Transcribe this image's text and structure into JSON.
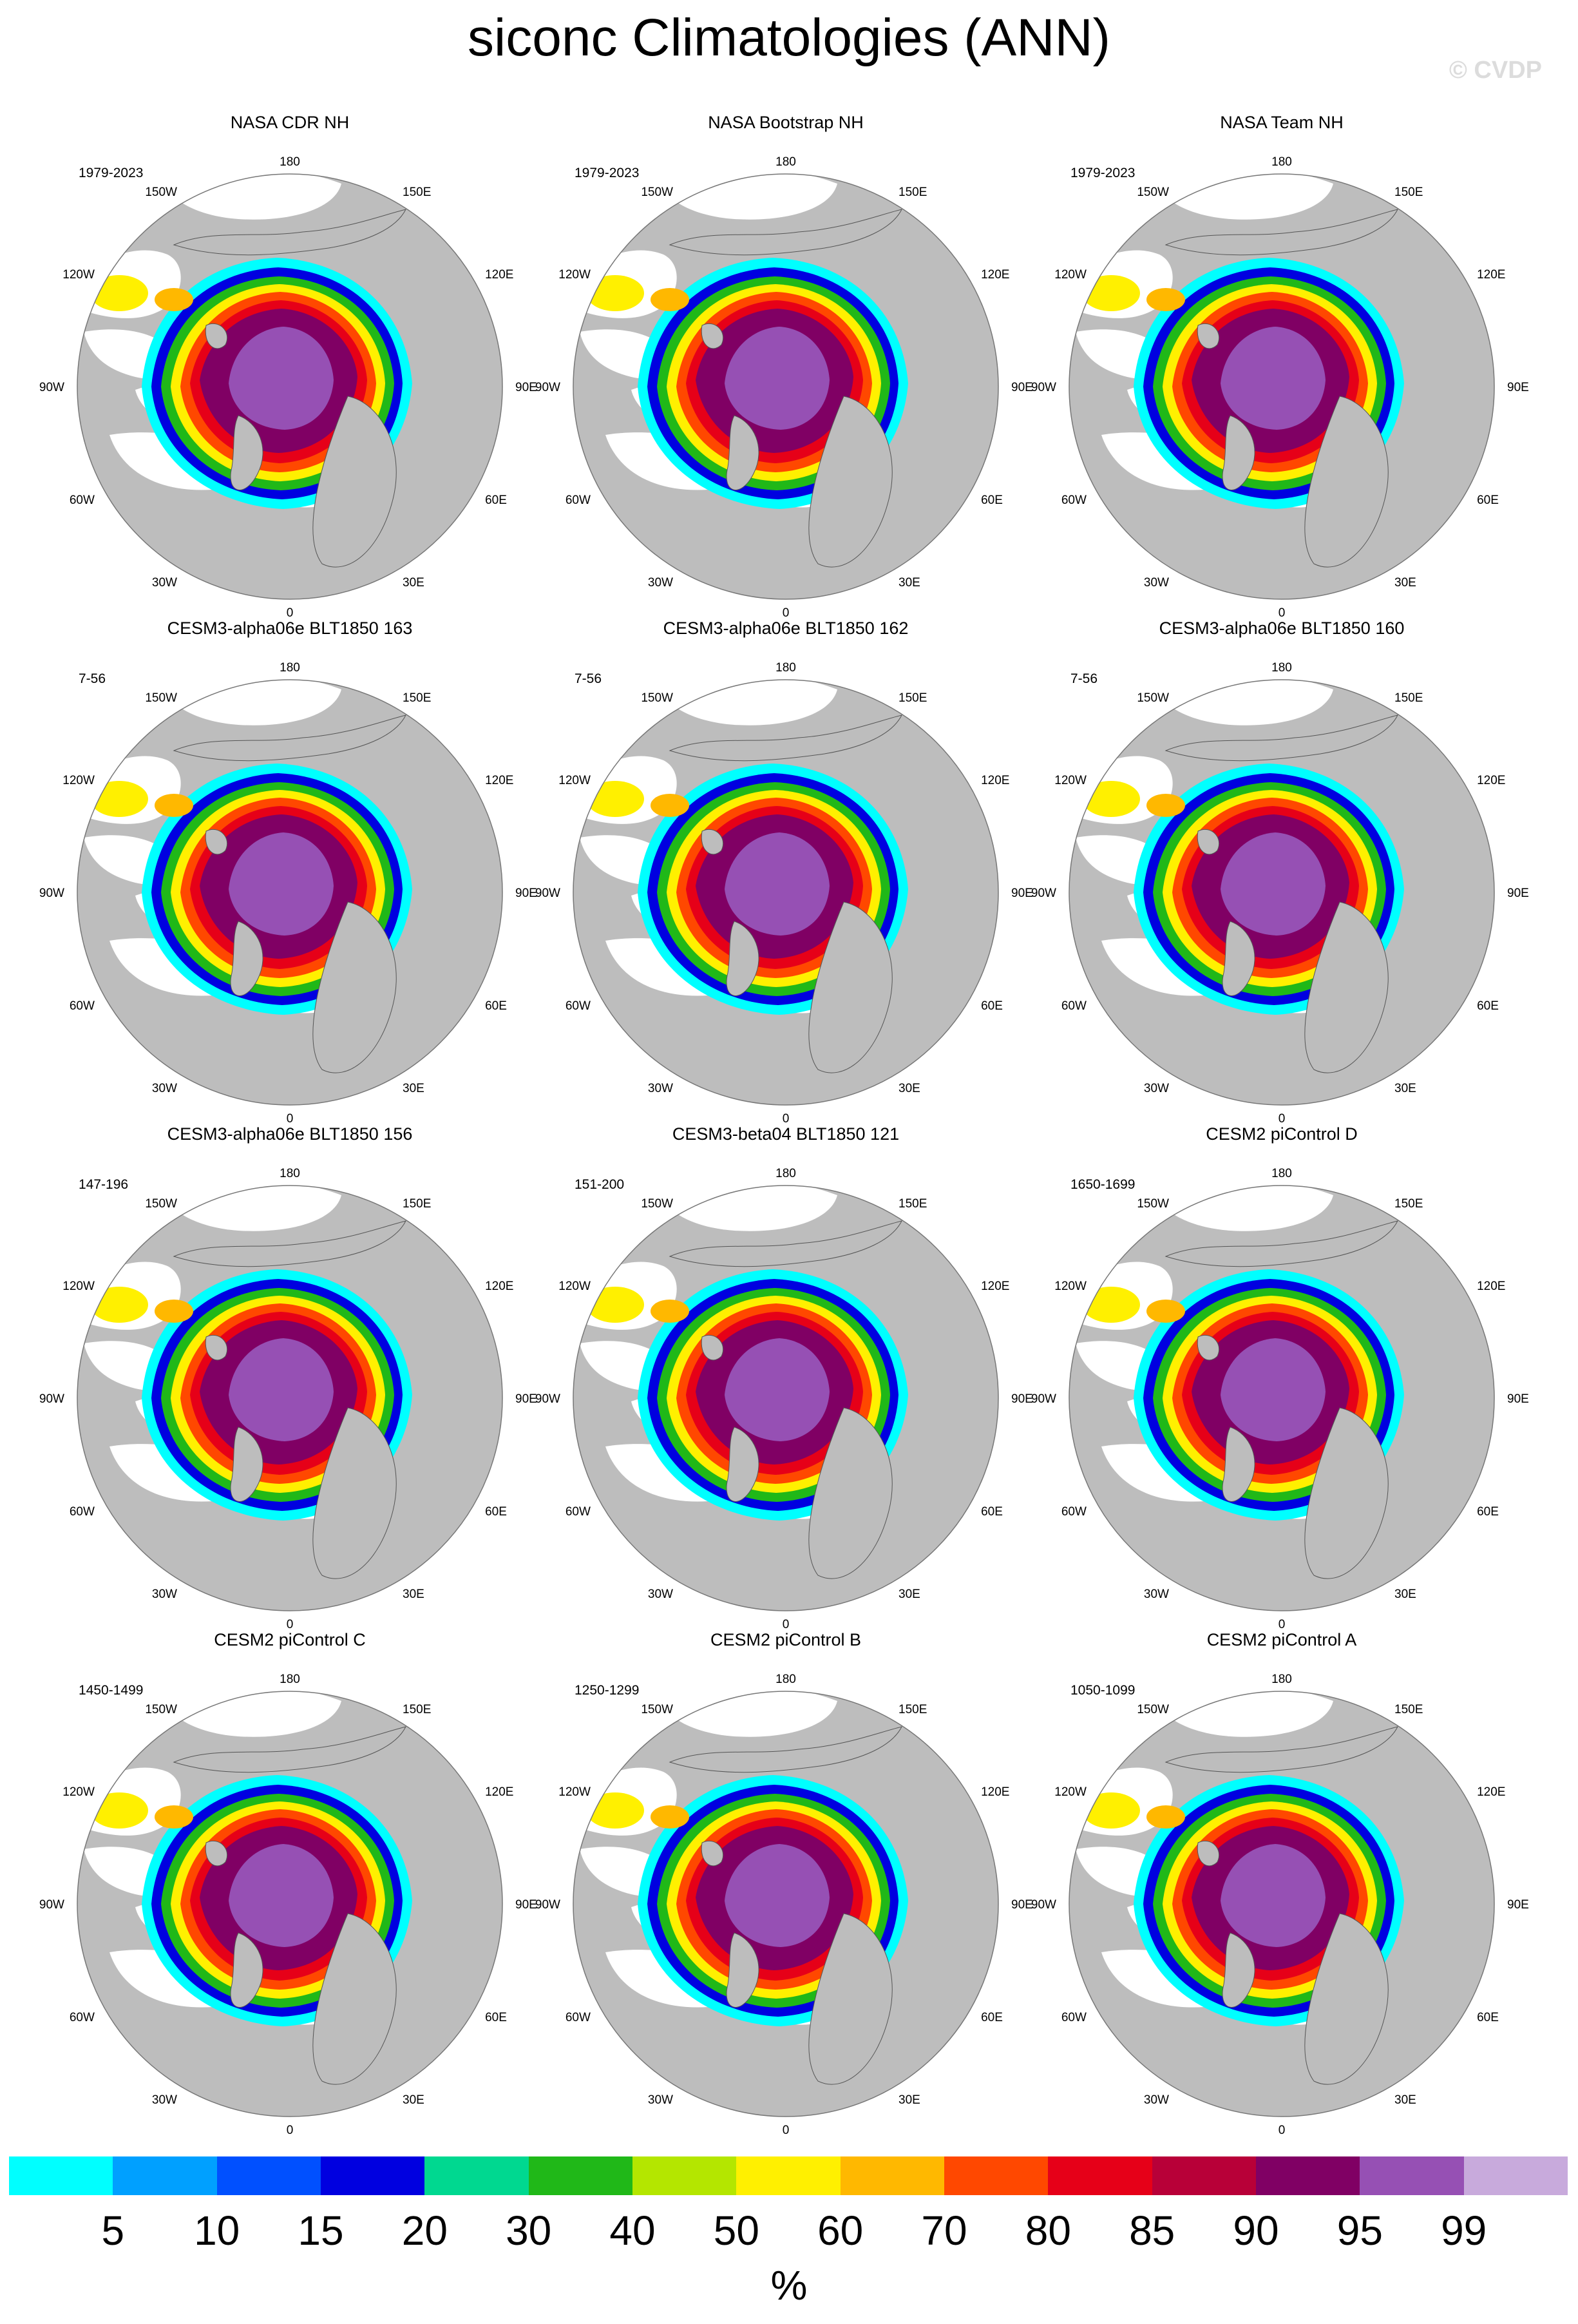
{
  "title": "siconc Climatologies (ANN)",
  "watermark": "© CVDP",
  "colors": {
    "land": "#bdbdbd",
    "ocean": "#ffffff",
    "scale": [
      "#00ffff",
      "#00a0ff",
      "#0050ff",
      "#0000e0",
      "#00d890",
      "#20b818",
      "#b4e600",
      "#fff000",
      "#ffb800",
      "#ff4800",
      "#e60018",
      "#b80038",
      "#800064",
      "#9650b4",
      "#c8aadc"
    ]
  },
  "longitude_labels": [
    "180",
    "150E",
    "120E",
    "90E",
    "60E",
    "30E",
    "0",
    "30W",
    "60W",
    "90W",
    "120W",
    "150W"
  ],
  "panels": [
    {
      "title": "NASA CDR NH",
      "years": "1979-2023"
    },
    {
      "title": "NASA Bootstrap NH",
      "years": "1979-2023"
    },
    {
      "title": "NASA Team NH",
      "years": "1979-2023"
    },
    {
      "title": "CESM3-alpha06e BLT1850 163",
      "years": "7-56"
    },
    {
      "title": "CESM3-alpha06e BLT1850 162",
      "years": "7-56"
    },
    {
      "title": "CESM3-alpha06e BLT1850 160",
      "years": "7-56"
    },
    {
      "title": "CESM3-alpha06e BLT1850 156",
      "years": "147-196"
    },
    {
      "title": "CESM3-beta04 BLT1850 121",
      "years": "151-200"
    },
    {
      "title": "CESM2 piControl D",
      "years": "1650-1699"
    },
    {
      "title": "CESM2 piControl C",
      "years": "1450-1499"
    },
    {
      "title": "CESM2 piControl B",
      "years": "1250-1299"
    },
    {
      "title": "CESM2 piControl A",
      "years": "1050-1099"
    }
  ],
  "colorbar": {
    "labels": [
      "5",
      "10",
      "15",
      "20",
      "30",
      "40",
      "50",
      "60",
      "70",
      "80",
      "85",
      "90",
      "95",
      "99"
    ],
    "unit": "%"
  }
}
